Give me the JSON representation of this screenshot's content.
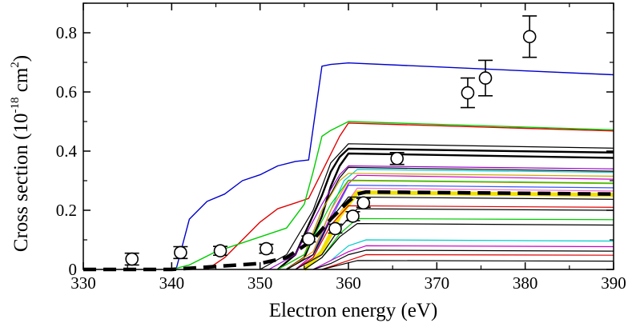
{
  "chart_data": {
    "type": "line",
    "title": "",
    "xlabel": "Electron energy (eV)",
    "ylabel": {
      "prefix": "Cross section (10",
      "exp1": "-18",
      "mid": " cm",
      "exp2": "2",
      "suffix": ")"
    },
    "xlim": [
      330,
      390
    ],
    "ylim": [
      0,
      0.9
    ],
    "xticks": [
      330,
      340,
      350,
      360,
      370,
      380,
      390
    ],
    "yticks": [
      0,
      0.2,
      0.4,
      0.6,
      0.8
    ],
    "xtick_labels": [
      "330",
      "340",
      "350",
      "360",
      "370",
      "380",
      "390"
    ],
    "ytick_labels": [
      "0",
      "0.2",
      "0.4",
      "0.6",
      "0.8"
    ],
    "measurements": {
      "name": "experiment",
      "points": [
        {
          "x": 335.5,
          "y": 0.035,
          "err": 0.02
        },
        {
          "x": 341.0,
          "y": 0.057,
          "err": 0.02
        },
        {
          "x": 345.5,
          "y": 0.063,
          "err": 0.015
        },
        {
          "x": 350.7,
          "y": 0.07,
          "err": 0.015
        },
        {
          "x": 355.5,
          "y": 0.103,
          "err": 0.01
        },
        {
          "x": 358.5,
          "y": 0.138,
          "err": 0.015
        },
        {
          "x": 360.5,
          "y": 0.18,
          "err": 0.015
        },
        {
          "x": 361.7,
          "y": 0.225,
          "err": 0.015
        },
        {
          "x": 365.5,
          "y": 0.375,
          "err": 0.02
        },
        {
          "x": 373.5,
          "y": 0.597,
          "err": 0.05
        },
        {
          "x": 375.5,
          "y": 0.647,
          "err": 0.06
        },
        {
          "x": 380.5,
          "y": 0.787,
          "err": 0.07
        }
      ]
    },
    "series": [
      {
        "name": "blue",
        "color": "#0000cc",
        "width": 1.4,
        "x": [
          340.5,
          342,
          344,
          346,
          348,
          350,
          352,
          354,
          355.5,
          357,
          358,
          360,
          390
        ],
        "y": [
          0,
          0.17,
          0.23,
          0.255,
          0.3,
          0.32,
          0.35,
          0.365,
          0.37,
          0.687,
          0.693,
          0.698,
          0.658
        ]
      },
      {
        "name": "red",
        "color": "#e00000",
        "width": 1.4,
        "x": [
          344,
          346,
          348,
          350,
          352,
          354,
          355.5,
          357,
          359,
          360,
          390
        ],
        "y": [
          0,
          0.04,
          0.1,
          0.16,
          0.205,
          0.225,
          0.24,
          0.33,
          0.45,
          0.495,
          0.468
        ]
      },
      {
        "name": "green-1",
        "color": "#00cc00",
        "width": 1.4,
        "x": [
          340,
          342,
          345,
          350,
          353,
          355,
          356,
          357,
          358,
          360,
          390
        ],
        "y": [
          0,
          0.015,
          0.06,
          0.11,
          0.14,
          0.22,
          0.33,
          0.45,
          0.47,
          0.5,
          0.472
        ]
      },
      {
        "name": "black-bold-1",
        "color": "#000000",
        "width": 2.4,
        "x": [
          352,
          354,
          355.5,
          357,
          358,
          359,
          360,
          390
        ],
        "y": [
          0,
          0.05,
          0.15,
          0.25,
          0.33,
          0.38,
          0.408,
          0.395
        ]
      },
      {
        "name": "black-bold-2",
        "color": "#000000",
        "width": 2.4,
        "x": [
          353,
          355,
          357,
          358,
          359,
          360,
          390
        ],
        "y": [
          0,
          0.04,
          0.18,
          0.28,
          0.35,
          0.392,
          0.377
        ]
      },
      {
        "name": "black-1",
        "color": "#000000",
        "width": 1.2,
        "x": [
          350,
          353,
          356,
          358,
          360,
          390
        ],
        "y": [
          0,
          0.05,
          0.2,
          0.36,
          0.425,
          0.41
        ]
      },
      {
        "name": "purple",
        "color": "#9900cc",
        "width": 1.2,
        "x": [
          351,
          354,
          357,
          359,
          360,
          390
        ],
        "y": [
          0,
          0.05,
          0.22,
          0.32,
          0.35,
          0.34
        ]
      },
      {
        "name": "black-2",
        "color": "#000000",
        "width": 1.2,
        "x": [
          352,
          355,
          357,
          359,
          360,
          390
        ],
        "y": [
          0,
          0.05,
          0.2,
          0.31,
          0.345,
          0.332
        ]
      },
      {
        "name": "cyan-1",
        "color": "#00cccc",
        "width": 1.2,
        "x": [
          353,
          356,
          358,
          359.5,
          361,
          390
        ],
        "y": [
          0,
          0.05,
          0.2,
          0.3,
          0.338,
          0.328
        ]
      },
      {
        "name": "gold",
        "color": "#ccaa00",
        "width": 1.2,
        "x": [
          352,
          355,
          357,
          359,
          360,
          390
        ],
        "y": [
          0,
          0.05,
          0.2,
          0.3,
          0.325,
          0.315
        ]
      },
      {
        "name": "magenta-1",
        "color": "#cc00cc",
        "width": 1.2,
        "x": [
          354,
          356,
          358,
          360,
          361,
          390
        ],
        "y": [
          0,
          0.05,
          0.18,
          0.29,
          0.318,
          0.305
        ]
      },
      {
        "name": "orange",
        "color": "#ff8800",
        "width": 1.2,
        "x": [
          353,
          356,
          358,
          360,
          390
        ],
        "y": [
          0,
          0.06,
          0.2,
          0.3,
          0.29
        ]
      },
      {
        "name": "green-2",
        "color": "#00cc00",
        "width": 1.2,
        "x": [
          352,
          355,
          358,
          360,
          390
        ],
        "y": [
          0,
          0.05,
          0.22,
          0.302,
          0.292
        ]
      },
      {
        "name": "blue-2",
        "color": "#3355ff",
        "width": 1.2,
        "x": [
          354,
          356,
          358,
          360,
          390
        ],
        "y": [
          0,
          0.04,
          0.17,
          0.285,
          0.276
        ]
      },
      {
        "name": "pink",
        "color": "#ff66cc",
        "width": 1.2,
        "x": [
          355,
          357,
          359,
          361,
          390
        ],
        "y": [
          0,
          0.05,
          0.19,
          0.275,
          0.265
        ]
      },
      {
        "name": "yellow-band",
        "color": "#f0e000",
        "width": 5,
        "x": [
          355,
          357,
          359,
          361,
          390
        ],
        "y": [
          0,
          0.06,
          0.18,
          0.26,
          0.252
        ]
      },
      {
        "name": "black-3",
        "color": "#000000",
        "width": 1.2,
        "x": [
          353,
          356,
          358,
          360,
          390
        ],
        "y": [
          0,
          0.05,
          0.17,
          0.245,
          0.237
        ]
      },
      {
        "name": "red-2",
        "color": "#e00000",
        "width": 1.2,
        "x": [
          354,
          356,
          358,
          360,
          390
        ],
        "y": [
          0,
          0.04,
          0.15,
          0.215,
          0.21
        ]
      },
      {
        "name": "black-4",
        "color": "#000000",
        "width": 1.2,
        "x": [
          354,
          357,
          359,
          361,
          390
        ],
        "y": [
          0,
          0.05,
          0.14,
          0.205,
          0.2
        ]
      },
      {
        "name": "green-3",
        "color": "#00cc00",
        "width": 1.2,
        "x": [
          355,
          357,
          359,
          361,
          390
        ],
        "y": [
          0,
          0.04,
          0.12,
          0.172,
          0.168
        ]
      },
      {
        "name": "black-5",
        "color": "#000000",
        "width": 1.2,
        "x": [
          355,
          357,
          359,
          361,
          390
        ],
        "y": [
          0,
          0.04,
          0.11,
          0.155,
          0.15
        ]
      },
      {
        "name": "cyan-2",
        "color": "#00cccc",
        "width": 1.2,
        "x": [
          356,
          358,
          360,
          362,
          390
        ],
        "y": [
          0,
          0.03,
          0.08,
          0.1,
          0.096
        ]
      },
      {
        "name": "magenta-2",
        "color": "#cc00cc",
        "width": 1.2,
        "x": [
          356,
          358,
          360,
          362,
          390
        ],
        "y": [
          0,
          0.03,
          0.06,
          0.08,
          0.077
        ]
      },
      {
        "name": "black-6",
        "color": "#000000",
        "width": 1.2,
        "x": [
          356,
          358,
          360,
          362,
          390
        ],
        "y": [
          0,
          0.02,
          0.05,
          0.065,
          0.062
        ]
      },
      {
        "name": "red-3",
        "color": "#e00000",
        "width": 1.2,
        "x": [
          357,
          359,
          361,
          362,
          390
        ],
        "y": [
          0,
          0.02,
          0.04,
          0.05,
          0.048
        ]
      },
      {
        "name": "black-7",
        "color": "#000000",
        "width": 1.2,
        "x": [
          357,
          359,
          361,
          390
        ],
        "y": [
          0,
          0.015,
          0.03,
          0.028
        ]
      },
      {
        "name": "dashed-mean",
        "color": "#000000",
        "width": 4.5,
        "dash": "16,9",
        "x": [
          330,
          340,
          350,
          353,
          356,
          358,
          360,
          361,
          362,
          390
        ],
        "y": [
          0,
          0,
          0.02,
          0.04,
          0.1,
          0.17,
          0.23,
          0.255,
          0.262,
          0.255
        ]
      }
    ]
  }
}
